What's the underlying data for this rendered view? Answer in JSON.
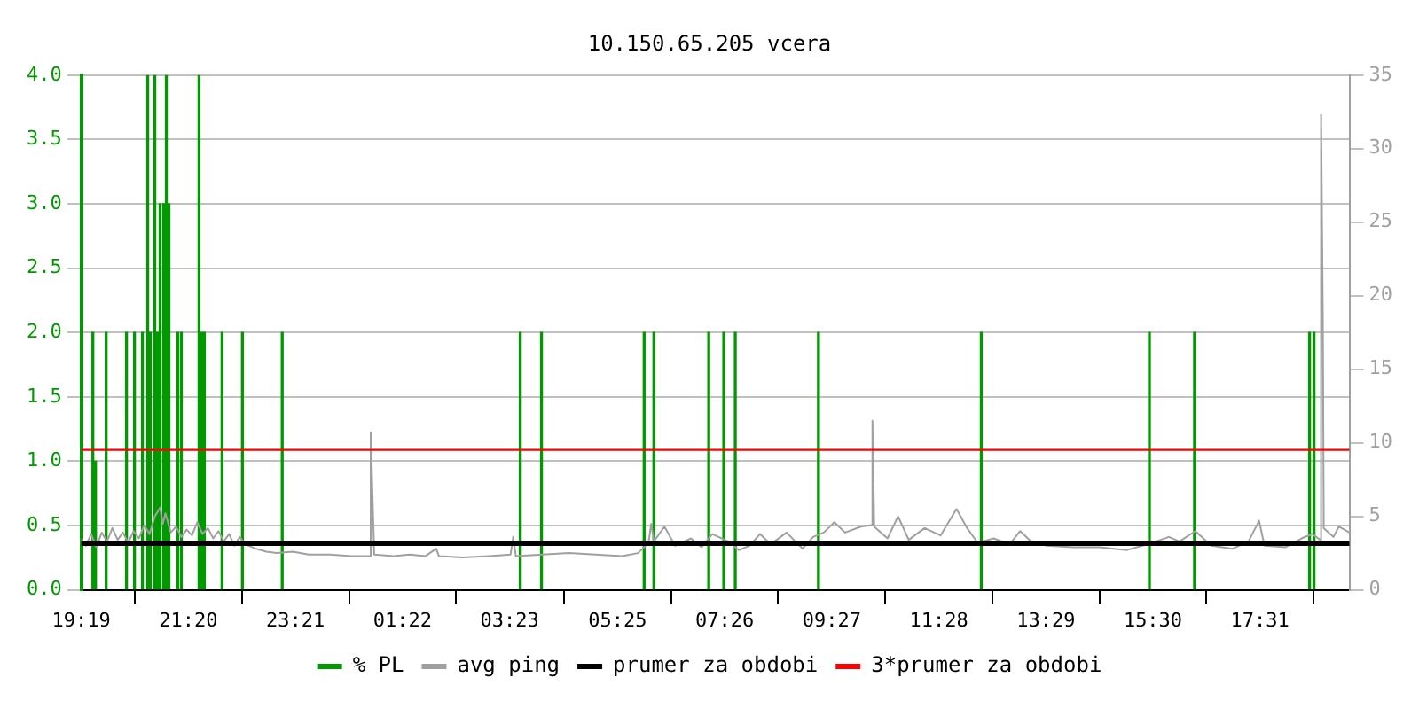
{
  "chart_data": {
    "type": "line",
    "title": "10.150.65.205 vcera",
    "xlim": [
      "--01-01T19:19",
      "--01-02T19:12"
    ],
    "xticks": [
      {
        "value": "--01-01T19:19",
        "label": "19:19"
      },
      {
        "value": "--01-01T21:20",
        "label": "21:20"
      },
      {
        "value": "--01-01T23:21",
        "label": "23:21"
      },
      {
        "value": "--01-02T01:22",
        "label": "01:22"
      },
      {
        "value": "--01-02T03:23",
        "label": "03:23"
      },
      {
        "value": "--01-02T05:25",
        "label": "05:25"
      },
      {
        "value": "--01-02T07:26",
        "label": "07:26"
      },
      {
        "value": "--01-02T09:27",
        "label": "09:27"
      },
      {
        "value": "--01-02T11:28",
        "label": "11:28"
      },
      {
        "value": "--01-02T13:29",
        "label": "13:29"
      },
      {
        "value": "--01-02T15:30",
        "label": "15:30"
      },
      {
        "value": "--01-02T17:31",
        "label": "17:31"
      }
    ],
    "ylim": [
      0,
      4
    ],
    "yticks": [
      {
        "value": 0,
        "label": "0.0"
      },
      {
        "value": 0.5,
        "label": "0.5"
      },
      {
        "value": 1,
        "label": "1.0"
      },
      {
        "value": 1.5,
        "label": "1.5"
      },
      {
        "value": 2,
        "label": "2.0"
      },
      {
        "value": 2.5,
        "label": "2.5"
      },
      {
        "value": 3,
        "label": "3.0"
      },
      {
        "value": 3.5,
        "label": "3.5"
      },
      {
        "value": 4,
        "label": "4.0"
      }
    ],
    "y2lim": [
      0,
      35
    ],
    "y2ticks": [
      0,
      5,
      10,
      15,
      20,
      25,
      30,
      35
    ],
    "grid": "y",
    "legend": "bottom",
    "series": [
      {
        "name": "% PL",
        "type": "bar",
        "color": "#009900",
        "x": [
          "--01-01T19:32",
          "--01-01T19:35",
          "--01-01T19:47",
          "--01-01T20:10",
          "--01-01T20:19",
          "--01-01T20:28",
          "--01-01T20:34",
          "--01-01T20:37",
          "--01-01T20:42",
          "--01-01T20:45",
          "--01-01T20:48",
          "--01-01T20:52",
          "--01-01T20:55",
          "--01-01T20:58",
          "--01-01T21:08",
          "--01-01T21:12",
          "--01-01T21:32",
          "--01-01T21:35",
          "--01-01T21:38",
          "--01-01T21:58",
          "--01-01T22:21",
          "--01-01T23:06",
          "--01-02T03:35",
          "--01-02T03:59",
          "--01-02T05:55",
          "--01-02T06:06",
          "--01-02T07:08",
          "--01-02T07:25",
          "--01-02T07:38",
          "--01-02T09:12",
          "--01-02T12:16",
          "--01-02T15:26",
          "--01-02T16:17",
          "--01-02T18:27",
          "--01-02T18:32"
        ],
        "values": [
          2,
          1,
          2,
          2,
          2,
          2,
          4,
          2,
          4,
          2,
          3,
          3,
          4,
          3,
          2,
          2,
          4,
          2,
          2,
          2,
          2,
          2,
          2,
          2,
          2,
          2,
          2,
          2,
          2,
          2,
          2,
          2,
          2,
          2,
          2
        ]
      },
      {
        "name": "avg ping",
        "axis": "y2",
        "color": "#a0a0a0",
        "x": [
          "--01-01T19:19",
          "--01-01T19:24",
          "--01-01T19:30",
          "--01-01T19:36",
          "--01-01T19:42",
          "--01-01T19:48",
          "--01-01T19:54",
          "--01-01T20:00",
          "--01-01T20:06",
          "--01-01T20:12",
          "--01-01T20:18",
          "--01-01T20:24",
          "--01-01T20:30",
          "--01-01T20:36",
          "--01-01T20:42",
          "--01-01T20:48",
          "--01-01T20:51",
          "--01-01T20:54",
          "--01-01T21:00",
          "--01-01T21:06",
          "--01-01T21:12",
          "--01-01T21:18",
          "--01-01T21:24",
          "--01-01T21:30",
          "--01-01T21:36",
          "--01-01T21:42",
          "--01-01T21:48",
          "--01-01T21:54",
          "--01-01T22:00",
          "--01-01T22:06",
          "--01-01T22:12",
          "--01-01T22:18",
          "--01-01T22:24",
          "--01-01T22:36",
          "--01-01T22:48",
          "--01-01T23:00",
          "--01-01T23:18",
          "--01-01T23:36",
          "--01-02T00:00",
          "--01-02T00:24",
          "--01-02T00:45",
          "--01-02T00:46",
          "--01-02T00:48",
          "--01-02T00:50",
          "--01-02T01:12",
          "--01-02T01:30",
          "--01-02T01:48",
          "--01-02T02:00",
          "--01-02T02:03",
          "--01-02T02:30",
          "--01-02T03:00",
          "--01-02T03:24",
          "--01-02T03:27",
          "--01-02T03:30",
          "--01-02T04:00",
          "--01-02T04:30",
          "--01-02T05:00",
          "--01-02T05:30",
          "--01-02T05:48",
          "--01-02T06:00",
          "--01-02T06:03",
          "--01-02T06:06",
          "--01-02T06:18",
          "--01-02T06:30",
          "--01-02T06:48",
          "--01-02T07:00",
          "--01-02T07:12",
          "--01-02T07:30",
          "--01-02T07:42",
          "--01-02T07:54",
          "--01-02T08:06",
          "--01-02T08:18",
          "--01-02T08:36",
          "--01-02T08:54",
          "--01-02T09:06",
          "--01-02T09:18",
          "--01-02T09:30",
          "--01-02T09:42",
          "--01-02T10:00",
          "--01-02T10:12",
          "--01-02T10:13",
          "--01-02T10:15",
          "--01-02T10:30",
          "--01-02T10:42",
          "--01-02T10:54",
          "--01-02T11:12",
          "--01-02T11:30",
          "--01-02T11:48",
          "--01-02T12:00",
          "--01-02T12:12",
          "--01-02T12:30",
          "--01-02T12:48",
          "--01-02T13:00",
          "--01-02T13:12",
          "--01-02T13:30",
          "--01-02T14:00",
          "--01-02T14:30",
          "--01-02T15:00",
          "--01-02T15:24",
          "--01-02T15:48",
          "--01-02T16:00",
          "--01-02T16:18",
          "--01-02T16:36",
          "--01-02T17:00",
          "--01-02T17:18",
          "--01-02T17:30",
          "--01-02T17:36",
          "--01-02T18:00",
          "--01-02T18:18",
          "--01-02T18:30",
          "--01-02T18:39",
          "--01-02T18:40",
          "--01-02T18:42",
          "--01-02T18:43",
          "--01-02T18:54",
          "--01-02T19:00",
          "--01-02T19:12"
        ],
        "values": [
          3.5,
          3.0,
          3.8,
          2.9,
          3.9,
          3.3,
          4.2,
          3.4,
          3.9,
          3.2,
          4.0,
          3.5,
          4.4,
          3.8,
          5.0,
          5.6,
          4.5,
          5.2,
          3.9,
          4.3,
          3.6,
          4.1,
          3.7,
          4.6,
          3.8,
          4.2,
          3.5,
          4.0,
          3.3,
          3.8,
          3.0,
          3.6,
          3.1,
          2.8,
          2.6,
          2.5,
          2.6,
          2.4,
          2.4,
          2.3,
          2.3,
          10.7,
          6.5,
          2.4,
          2.3,
          2.4,
          2.3,
          2.8,
          2.3,
          2.2,
          2.3,
          2.4,
          3.6,
          2.3,
          2.4,
          2.5,
          2.4,
          2.3,
          2.5,
          3.2,
          4.5,
          3.3,
          4.3,
          3.0,
          3.5,
          2.9,
          3.8,
          3.3,
          2.7,
          3.0,
          3.8,
          3.1,
          3.9,
          2.8,
          3.6,
          3.9,
          4.6,
          3.9,
          4.3,
          4.4,
          11.5,
          4.3,
          3.5,
          5.0,
          3.4,
          4.2,
          3.7,
          5.5,
          4.2,
          3.2,
          3.5,
          3.1,
          4.0,
          3.3,
          3.0,
          2.9,
          2.9,
          2.7,
          3.1,
          3.6,
          3.3,
          4.0,
          3.0,
          2.8,
          3.3,
          4.7,
          3.0,
          2.9,
          3.5,
          3.8,
          3.4,
          32.3,
          18.3,
          4.2,
          3.6,
          4.3,
          3.9
        ]
      }
    ],
    "ref_lines": [
      {
        "axis": "y2",
        "value": 3.17,
        "label": "prumer za obdobi",
        "color": "#000000"
      },
      {
        "axis": "y2",
        "value": 9.52,
        "label": "3*prumer za obdobi",
        "color": "#ff0000"
      }
    ]
  }
}
